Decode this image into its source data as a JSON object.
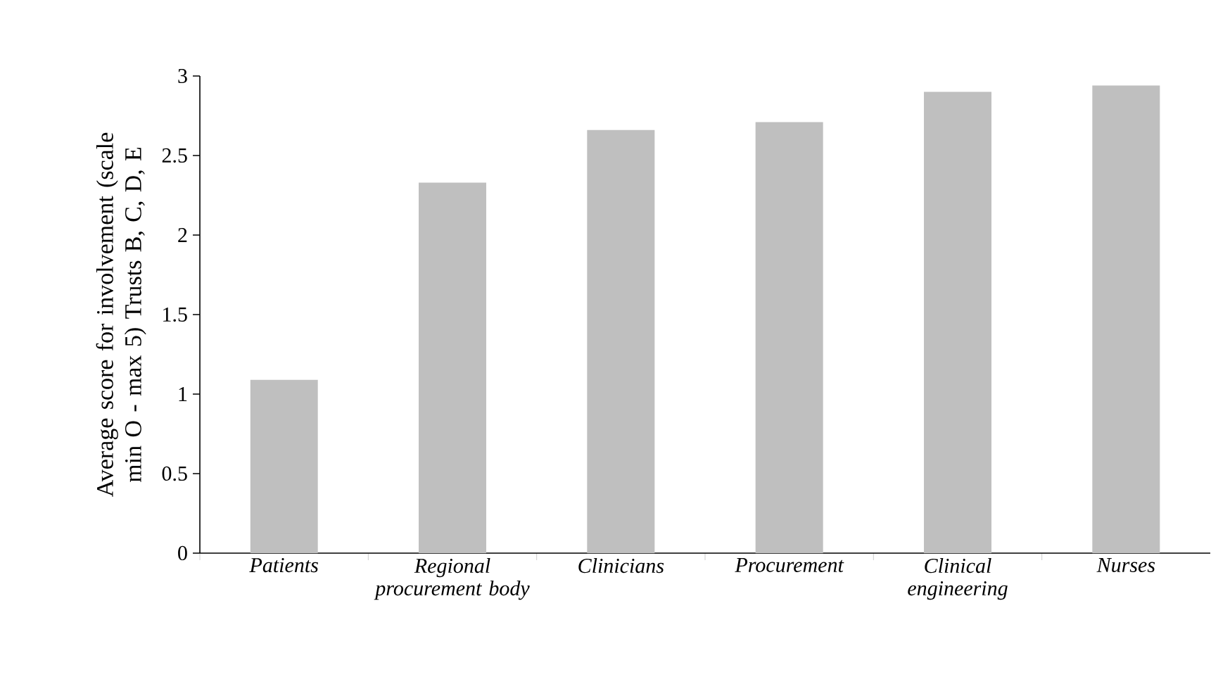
{
  "chart_data": {
    "type": "bar",
    "ylabel": "Average score for involvement (scale min O - max 5) Trusts B, C, D, E",
    "categories": [
      "Patients",
      "Regional procurement body",
      "Clinicians",
      "Procurement",
      "Clinical engineering",
      "Nurses"
    ],
    "values": [
      1.09,
      2.33,
      2.66,
      2.71,
      2.9,
      2.94
    ],
    "color": "#bfbfbf",
    "ylim": [
      0,
      3
    ],
    "yticks": [
      0,
      0.5,
      1,
      1.5,
      2,
      2.5,
      3
    ]
  }
}
